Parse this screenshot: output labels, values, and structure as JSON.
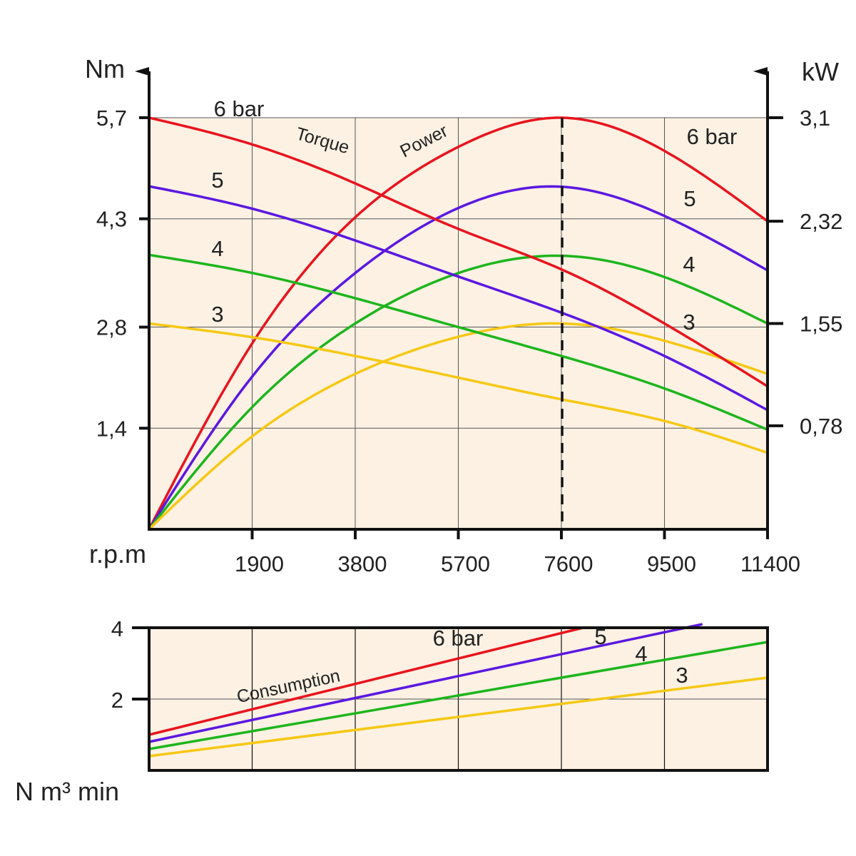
{
  "chart_data": [
    {
      "type": "line",
      "left_axis_label": "Nm",
      "right_axis_label": "kW",
      "x_axis_label": "r.p.m",
      "x_ticks": [
        1900,
        3800,
        5700,
        7600,
        9500,
        11400
      ],
      "x_tick_labels": [
        "1900",
        "3800",
        "5700",
        "7600",
        "9500",
        "11400"
      ],
      "xlim": [
        0,
        11400
      ],
      "left_ticks": [
        1.4,
        2.8,
        4.3,
        5.7
      ],
      "left_tick_labels": [
        "1,4",
        "2,8",
        "4,3",
        "5,7"
      ],
      "left_ylim": [
        0,
        5.7
      ],
      "right_ticks": [
        0.78,
        1.55,
        2.32,
        3.1
      ],
      "right_tick_labels": [
        "0,78",
        "1,55",
        "2,32",
        "3,1"
      ],
      "right_ylim": [
        0,
        3.1
      ],
      "annotations": {
        "torque": "Torque",
        "power": "Power"
      },
      "peak_rpm": 7600,
      "grid": true,
      "torque_series": [
        {
          "name": "6 bar",
          "color": "#e8141e",
          "x": [
            0,
            1900,
            3800,
            5700,
            7600,
            9500,
            11400
          ],
          "y": [
            5.7,
            5.33,
            4.79,
            4.16,
            3.6,
            2.85,
            1.98
          ]
        },
        {
          "name": "5",
          "color": "#5b18e0",
          "x": [
            0,
            1900,
            3800,
            5700,
            7600,
            9500,
            11400
          ],
          "y": [
            4.75,
            4.44,
            4.0,
            3.5,
            3.0,
            2.4,
            1.65
          ]
        },
        {
          "name": "4",
          "color": "#1db51d",
          "x": [
            0,
            1900,
            3800,
            5700,
            7600,
            9500,
            11400
          ],
          "y": [
            3.8,
            3.55,
            3.2,
            2.8,
            2.4,
            1.95,
            1.38
          ]
        },
        {
          "name": "3",
          "color": "#f5c814",
          "x": [
            0,
            1900,
            3800,
            5700,
            7600,
            9500,
            11400
          ],
          "y": [
            2.85,
            2.66,
            2.4,
            2.1,
            1.8,
            1.5,
            1.06
          ]
        }
      ],
      "power_series": [
        {
          "name": "6 bar",
          "color": "#e8141e",
          "x": [
            0,
            1900,
            3800,
            5700,
            7600,
            9500,
            11400
          ],
          "y": [
            0.0,
            1.4,
            2.35,
            2.88,
            3.1,
            2.85,
            2.32
          ]
        },
        {
          "name": "5",
          "color": "#5b18e0",
          "x": [
            0,
            1900,
            3800,
            5700,
            7600,
            9500,
            11400
          ],
          "y": [
            0.0,
            1.15,
            1.93,
            2.42,
            2.58,
            2.36,
            1.95
          ]
        },
        {
          "name": "4",
          "color": "#1db51d",
          "x": [
            0,
            1900,
            3800,
            5700,
            7600,
            9500,
            11400
          ],
          "y": [
            0.0,
            0.92,
            1.55,
            1.93,
            2.06,
            1.9,
            1.55
          ]
        },
        {
          "name": "3",
          "color": "#f5c814",
          "x": [
            0,
            1900,
            3800,
            5700,
            7600,
            9500,
            11400
          ],
          "y": [
            0.0,
            0.7,
            1.17,
            1.45,
            1.55,
            1.42,
            1.17
          ]
        }
      ]
    },
    {
      "type": "line",
      "y_axis_label": "N m³ min",
      "xlim": [
        0,
        11400
      ],
      "ylim": [
        0,
        4
      ],
      "y_ticks": [
        2,
        4
      ],
      "y_tick_labels": [
        "2",
        "4"
      ],
      "annotations": {
        "consumption": "Consumption"
      },
      "grid": true,
      "series": [
        {
          "name": "6 bar",
          "color": "#e8141e",
          "x": [
            0,
            8000
          ],
          "y": [
            1.0,
            4.0
          ]
        },
        {
          "name": "5",
          "color": "#5b18e0",
          "x": [
            0,
            10200
          ],
          "y": [
            0.8,
            4.1
          ]
        },
        {
          "name": "4",
          "color": "#1db51d",
          "x": [
            0,
            11400
          ],
          "y": [
            0.6,
            3.6
          ]
        },
        {
          "name": "3",
          "color": "#f5c814",
          "x": [
            0,
            11400
          ],
          "y": [
            0.4,
            2.6
          ]
        }
      ]
    }
  ]
}
